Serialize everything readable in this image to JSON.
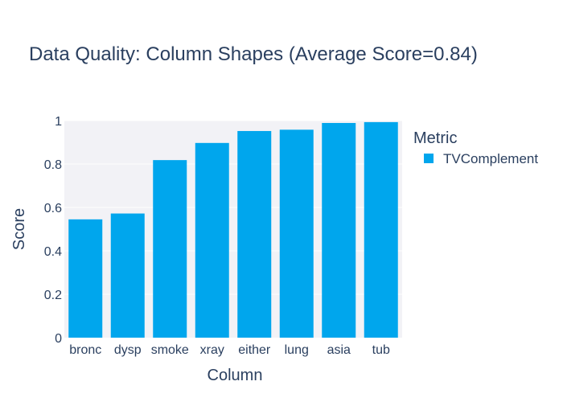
{
  "chart_data": {
    "type": "bar",
    "title": "Data Quality: Column Shapes (Average Score=0.84)",
    "xlabel": "Column",
    "ylabel": "Score",
    "categories": [
      "bronc",
      "dysp",
      "smoke",
      "xray",
      "either",
      "lung",
      "asia",
      "tub"
    ],
    "series": [
      {
        "name": "TVComplement",
        "values": [
          0.545,
          0.572,
          0.818,
          0.897,
          0.952,
          0.958,
          0.989,
          0.993
        ],
        "color": "#00a6ed"
      }
    ],
    "ylim": [
      0,
      1
    ],
    "yticks": [
      "0",
      "0.2",
      "0.4",
      "0.6",
      "0.8",
      "1"
    ],
    "ytick_values": [
      0,
      0.2,
      0.4,
      0.6,
      0.8,
      1
    ],
    "grid": true,
    "legend": {
      "title": "Metric",
      "placement": "right"
    },
    "plot_background": "#f2f2f6"
  }
}
